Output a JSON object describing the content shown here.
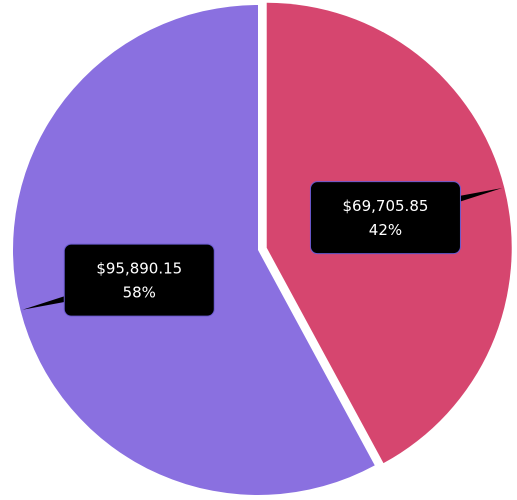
{
  "chart_data": {
    "type": "pie",
    "values": [
      69705.85,
      95890.15
    ],
    "value_labels": [
      "$69,705.85",
      "$95,890.15"
    ],
    "percent_labels": [
      "42%",
      "58%"
    ],
    "colors": [
      "#d6466f",
      "#8a70e0"
    ],
    "start_angle": 0,
    "exploded": [
      true,
      false
    ]
  }
}
